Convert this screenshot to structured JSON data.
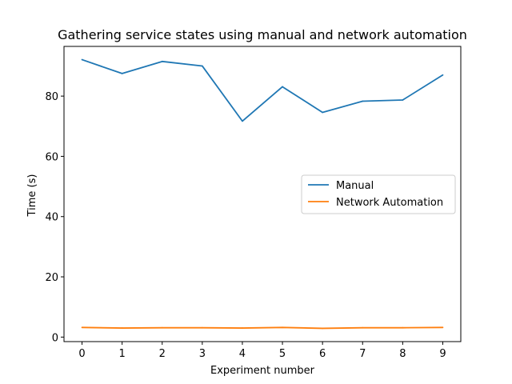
{
  "chart_data": {
    "type": "line",
    "title": "Gathering service states using manual and network automation",
    "xlabel": "Experiment number",
    "ylabel": "Time (s)",
    "x": [
      0,
      1,
      2,
      3,
      4,
      5,
      6,
      7,
      8,
      9
    ],
    "xlim": [
      -0.45,
      9.45
    ],
    "ylim": [
      -1.5,
      96.5
    ],
    "xticks": [
      0,
      1,
      2,
      3,
      4,
      5,
      6,
      7,
      8,
      9
    ],
    "yticks": [
      0,
      20,
      40,
      60,
      80
    ],
    "grid": false,
    "legend_position": "center-right",
    "series": [
      {
        "name": "Manual",
        "color": "#1f77b4",
        "values": [
          92.1,
          87.5,
          91.5,
          90.0,
          71.7,
          83.1,
          74.6,
          78.3,
          78.7,
          87.0
        ]
      },
      {
        "name": "Network Automation",
        "color": "#ff7f0e",
        "values": [
          3.2,
          3.0,
          3.1,
          3.1,
          3.0,
          3.2,
          2.9,
          3.1,
          3.1,
          3.2
        ]
      }
    ]
  }
}
